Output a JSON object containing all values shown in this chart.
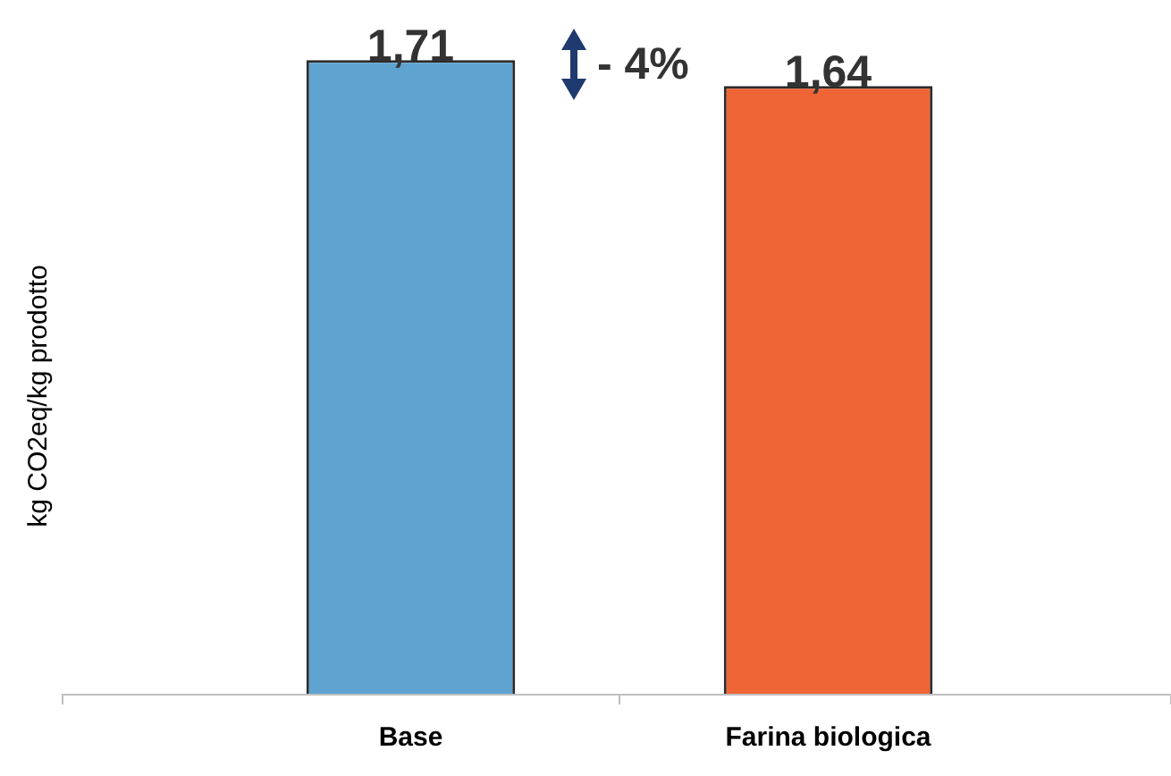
{
  "chart_data": {
    "type": "bar",
    "ylabel": "kg CO2eq/kg prodotto",
    "categories": [
      "Base",
      "Farina biologica"
    ],
    "values": [
      1.71,
      1.64
    ],
    "colors": [
      "#5fa3d0",
      "#f06536"
    ],
    "value_labels": [
      "1,71",
      "1,64"
    ],
    "annotations": [
      "- 4%"
    ]
  }
}
